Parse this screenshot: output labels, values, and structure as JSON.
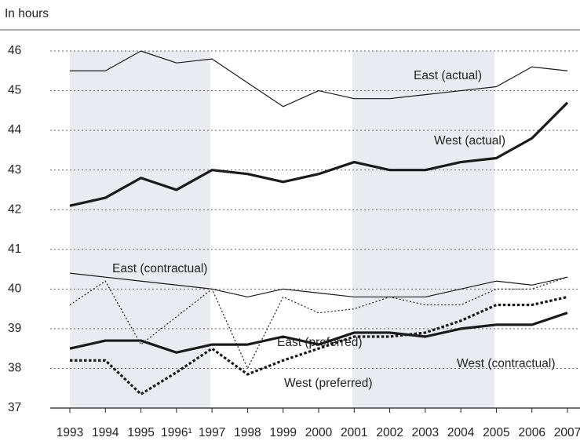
{
  "chart_data": {
    "type": "line",
    "y_label": "In hours",
    "categories": [
      "1993",
      "1994",
      "1995",
      "1996¹",
      "1997",
      "1998",
      "1999",
      "2000",
      "2001",
      "2002",
      "2003",
      "2004",
      "2005",
      "2006",
      "2007"
    ],
    "ylim": [
      37,
      46
    ],
    "yticks": [
      37,
      38,
      39,
      40,
      41,
      42,
      43,
      44,
      45,
      46
    ],
    "grid": true,
    "series": [
      {
        "name": "East (actual)",
        "color": "#1a1a1a",
        "weight": "normal",
        "dash": "solid",
        "values": [
          45.5,
          45.5,
          46.0,
          45.7,
          45.8,
          45.2,
          44.6,
          45.0,
          44.8,
          44.8,
          44.9,
          45.0,
          45.1,
          45.6,
          45.5
        ]
      },
      {
        "name": "West (actual)",
        "color": "#1a1a1a",
        "weight": "bold",
        "dash": "solid",
        "values": [
          42.1,
          42.3,
          42.8,
          42.5,
          43.0,
          42.9,
          42.7,
          42.9,
          43.2,
          43.0,
          43.0,
          43.2,
          43.3,
          43.8,
          44.7
        ]
      },
      {
        "name": "East (contractual)",
        "color": "#1a1a1a",
        "weight": "normal",
        "dash": "solid",
        "values": [
          40.4,
          40.3,
          40.2,
          40.1,
          40.0,
          39.8,
          40.0,
          39.9,
          39.8,
          39.8,
          39.8,
          40.0,
          40.2,
          40.1,
          40.3
        ]
      },
      {
        "name": "East (preferred)",
        "color": "#1a1a1a",
        "weight": "normal",
        "dash": "dotted",
        "values": [
          39.6,
          40.2,
          38.6,
          39.3,
          40.0,
          38.0,
          39.8,
          39.4,
          39.5,
          39.8,
          39.6,
          39.6,
          40.0,
          40.0,
          40.3
        ]
      },
      {
        "name": "West (contractual)",
        "color": "#1a1a1a",
        "weight": "bold",
        "dash": "solid",
        "values": [
          38.5,
          38.7,
          38.7,
          38.4,
          38.6,
          38.6,
          38.8,
          38.6,
          38.9,
          38.9,
          38.8,
          39.0,
          39.1,
          39.1,
          39.4
        ]
      },
      {
        "name": "West (preferred)",
        "color": "#1a1a1a",
        "weight": "bold",
        "dash": "dotted",
        "values": [
          38.2,
          38.2,
          37.35,
          37.9,
          38.5,
          37.85,
          38.2,
          38.5,
          38.8,
          38.8,
          38.9,
          39.2,
          39.6,
          39.6,
          39.8
        ]
      }
    ]
  }
}
